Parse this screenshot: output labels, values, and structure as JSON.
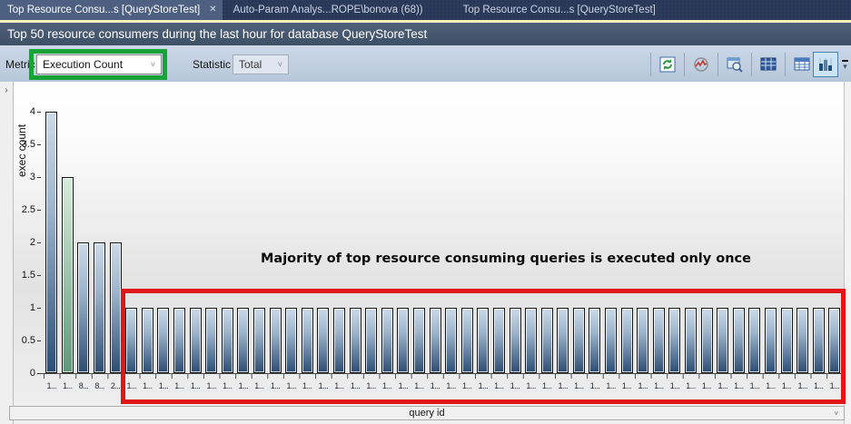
{
  "tabs": [
    {
      "label": "Top Resource Consu...s [QueryStoreTest]",
      "active": true,
      "closable": true,
      "close_glyph": "✕"
    },
    {
      "label": "Auto-Param Analys...ROPE\\bonova (68))",
      "active": false,
      "closable": false
    },
    {
      "label": "Top Resource Consu...s [QueryStoreTest]",
      "active": false,
      "closable": false
    }
  ],
  "header": {
    "title": "Top 50 resource consumers during the last hour for database QueryStoreTest"
  },
  "toolbar": {
    "metric_label": "Metric",
    "metric_value": "Execution Count",
    "statistic_label": "Statistic",
    "statistic_value": "Total",
    "dropdown_chevron": "˅",
    "icons": [
      {
        "name": "refresh-icon",
        "selected": false
      },
      {
        "name": "track-query-icon",
        "selected": false
      },
      {
        "name": "view-query-text-icon",
        "selected": false
      },
      {
        "name": "grid-view-icon",
        "selected": false
      },
      {
        "name": "grid-metrics-view-icon",
        "selected": false
      },
      {
        "name": "chart-view-icon",
        "selected": true
      }
    ],
    "overflow_glyph": "▾"
  },
  "annotations": {
    "green_box_color": "#17a335",
    "red_box_color": "#e11717"
  },
  "side": {
    "collapse_chevron": "›"
  },
  "chart_data": {
    "type": "bar",
    "annotation": "Majority of top resource consuming queries is executed only once",
    "xlabel": "query id",
    "ylabel": "exec count",
    "ylim": [
      0,
      4
    ],
    "ytick_labels": [
      "0",
      "0.5",
      "1",
      "1.5",
      "2",
      "2.5",
      "3",
      "3.5",
      "4"
    ],
    "grid": false,
    "highlight_index": 1,
    "bar_color": "#2c4d72",
    "highlight_color": "#60977b",
    "categories": [
      "1...",
      "1...",
      "8...",
      "8...",
      "2...",
      "1...",
      "1...",
      "1...",
      "1...",
      "1...",
      "1...",
      "1...",
      "1...",
      "1...",
      "1...",
      "1...",
      "1...",
      "1...",
      "1...",
      "1...",
      "1...",
      "1...",
      "1...",
      "1...",
      "1...",
      "1...",
      "1...",
      "1...",
      "1...",
      "1...",
      "1...",
      "1...",
      "1...",
      "1...",
      "1...",
      "1...",
      "1...",
      "1...",
      "1...",
      "1...",
      "1...",
      "1...",
      "1...",
      "1...",
      "1...",
      "1...",
      "1...",
      "1...",
      "1...",
      "1..."
    ],
    "values": [
      4,
      3,
      2,
      2,
      2,
      1,
      1,
      1,
      1,
      1,
      1,
      1,
      1,
      1,
      1,
      1,
      1,
      1,
      1,
      1,
      1,
      1,
      1,
      1,
      1,
      1,
      1,
      1,
      1,
      1,
      1,
      1,
      1,
      1,
      1,
      1,
      1,
      1,
      1,
      1,
      1,
      1,
      1,
      1,
      1,
      1,
      1,
      1,
      1,
      1
    ]
  }
}
